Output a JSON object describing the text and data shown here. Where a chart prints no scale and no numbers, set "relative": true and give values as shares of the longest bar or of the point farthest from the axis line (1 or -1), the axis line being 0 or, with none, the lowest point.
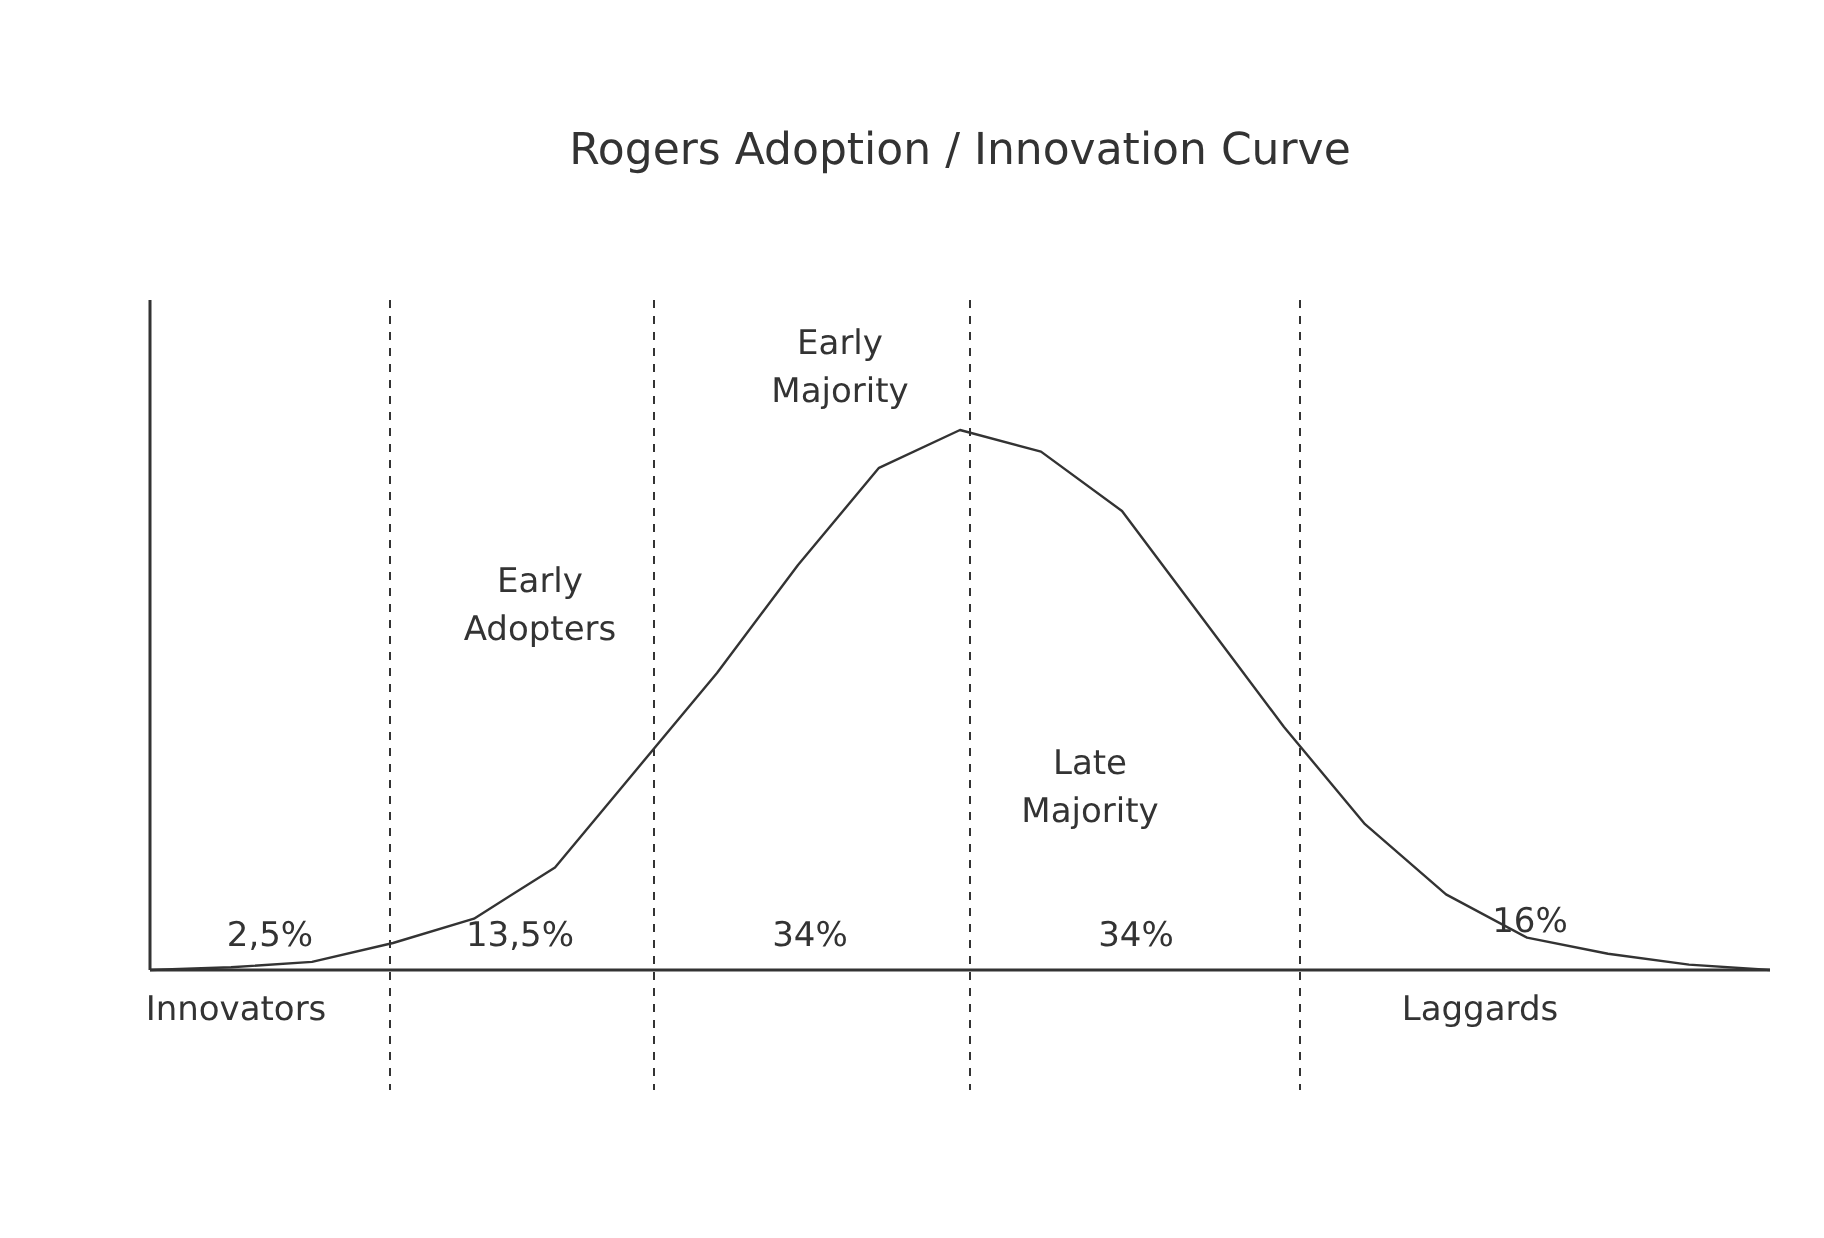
{
  "chart_data": {
    "type": "line",
    "title": "Rogers Adoption / Innovation Curve",
    "relative": true,
    "marker": "none",
    "line_style": "solid",
    "categories": [
      null,
      null,
      null,
      null,
      null,
      null,
      null,
      null,
      null,
      null,
      null,
      null,
      null,
      null,
      null,
      null,
      null,
      null,
      null,
      null,
      null
    ],
    "series": [
      {
        "color": "#333333",
        "values": [
          0,
          0.005,
          0.015,
          0.05,
          0.095,
          0.19,
          0.37,
          0.55,
          0.75,
          0.93,
          1,
          0.96,
          0.85,
          0.65,
          0.45,
          0.27,
          0.14,
          0.06,
          0.03,
          0.01,
          0
        ]
      }
    ],
    "annotations": [
      "2,5%",
      "13,5%",
      "34%",
      "34%",
      "16%",
      "Innovators",
      "Laggards",
      "Early\nAdopters",
      "Early\nMajority",
      "Late\nMajority"
    ]
  }
}
